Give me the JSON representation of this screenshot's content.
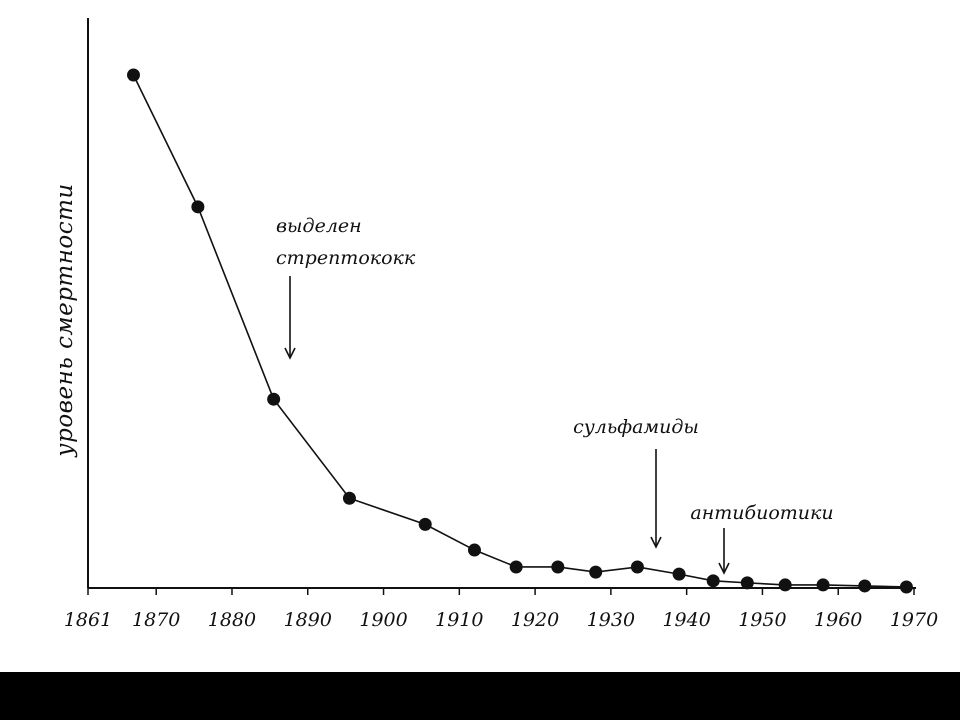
{
  "chart_data": {
    "type": "line",
    "title": "",
    "xlabel": "",
    "ylabel": "уровень смертности",
    "xlim": [
      1861,
      1970
    ],
    "ylim": [
      0,
      100
    ],
    "grid": false,
    "x_ticks": [
      "1861",
      "1870",
      "1880",
      "1890",
      "1900",
      "1910",
      "1920",
      "1930",
      "1940",
      "1950",
      "1960",
      "1970"
    ],
    "series": [
      {
        "x": [
          1867,
          1875.5,
          1885.5,
          1895.5,
          1905.5,
          1912,
          1917.5,
          1923,
          1928,
          1933.5,
          1939,
          1943.5,
          1948,
          1953,
          1958,
          1963.5,
          1969
        ],
        "values": [
          100,
          74.3,
          36.8,
          17.5,
          12.4,
          7.4,
          4.1,
          4.1,
          3.1,
          4.1,
          2.7,
          1.4,
          1.0,
          0.6,
          0.6,
          0.4,
          0.2
        ]
      }
    ],
    "annotations": [
      {
        "id": "streptococcus",
        "lines": [
          "выделен",
          "стрептококк"
        ],
        "x": 1885,
        "y": 39
      },
      {
        "id": "sulfonamides",
        "lines": [
          "сульфамиды"
        ],
        "x": 1935.5,
        "y": 7
      },
      {
        "id": "antibiotics",
        "lines": [
          "антибиотики"
        ],
        "x": 1945,
        "y": 2.5
      }
    ]
  },
  "colors": {
    "background": "#ffffff",
    "ink": "#111111",
    "frame": "#000000"
  }
}
